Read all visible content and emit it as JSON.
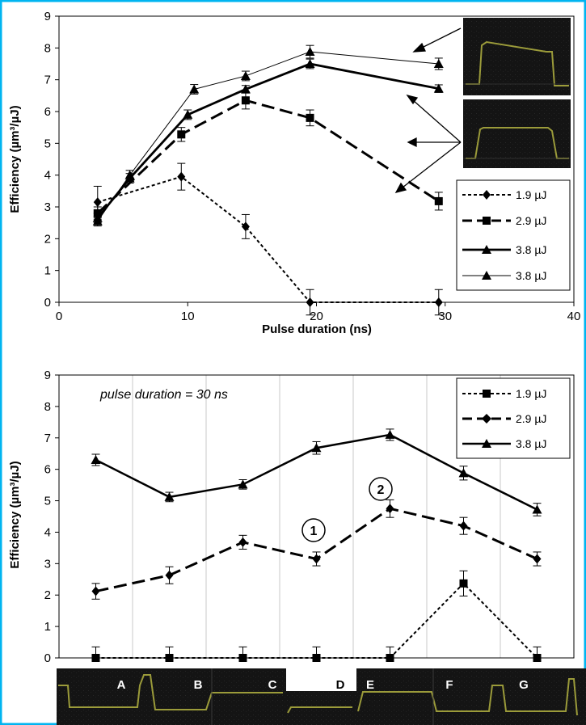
{
  "chart_data": [
    {
      "type": "line",
      "title": "",
      "xlabel": "Pulse duration (ns)",
      "ylabel": "Efficiency (µm³/µJ)",
      "xlim": [
        0,
        40
      ],
      "ylim": [
        0,
        9
      ],
      "xticks": [
        0,
        10,
        20,
        30,
        40
      ],
      "yticks": [
        0,
        1,
        2,
        3,
        4,
        5,
        6,
        7,
        8,
        9
      ],
      "grid": false,
      "legend_position": "bottom-right",
      "series": [
        {
          "name": "1.9 µJ",
          "marker": "diamond",
          "style": "dotted",
          "x": [
            3,
            9.5,
            14.5,
            19.5,
            29.5
          ],
          "y": [
            3.15,
            3.95,
            2.38,
            0,
            0
          ],
          "err": [
            0.5,
            0.42,
            0.38,
            0.4,
            0.4
          ]
        },
        {
          "name": "2.9 µJ",
          "marker": "square",
          "style": "dashed",
          "x": [
            3,
            9.5,
            14.5,
            19.5,
            29.5
          ],
          "y": [
            2.8,
            5.28,
            6.35,
            5.8,
            3.18
          ],
          "err": [
            0.2,
            0.22,
            0.27,
            0.25,
            0.28
          ]
        },
        {
          "name": "3.8 µJ",
          "marker": "triangle",
          "style": "thick",
          "x": [
            3,
            5.5,
            10,
            14.5,
            19.5,
            29.5
          ],
          "y": [
            2.65,
            3.9,
            5.9,
            6.7,
            7.5,
            6.72
          ],
          "err": [
            0.15,
            0.15,
            0.15,
            0.12,
            0.15,
            0.12
          ]
        },
        {
          "name": "3.8 µJ",
          "marker": "triangle",
          "style": "thin",
          "x": [
            3,
            5.5,
            10.5,
            14.5,
            19.5,
            29.5
          ],
          "y": [
            2.55,
            4.0,
            6.7,
            7.12,
            7.88,
            7.5
          ],
          "err": [
            0.15,
            0.15,
            0.15,
            0.15,
            0.2,
            0.18
          ]
        }
      ]
    },
    {
      "type": "line",
      "title": "",
      "xlabel": "",
      "ylabel": "Efficiency (µm³/µJ)",
      "ylim": [
        0,
        9
      ],
      "yticks": [
        0,
        1,
        2,
        3,
        4,
        5,
        6,
        7,
        8,
        9
      ],
      "categories": [
        "A",
        "B",
        "C",
        "D",
        "E",
        "F",
        "G"
      ],
      "grid": true,
      "legend_position": "top-right",
      "annotation": "pulse duration = 30 ns",
      "circled_labels": [
        "1",
        "2"
      ],
      "series": [
        {
          "name": "1.9 µJ",
          "marker": "square",
          "style": "dotted",
          "values": [
            0,
            0,
            0,
            0,
            0,
            2.37,
            0
          ],
          "err": [
            0.35,
            0.35,
            0.35,
            0.35,
            0.35,
            0.4,
            0.35
          ]
        },
        {
          "name": "2.9 µJ",
          "marker": "diamond",
          "style": "dashed",
          "values": [
            2.12,
            2.63,
            3.68,
            3.15,
            4.75,
            4.2,
            3.15
          ],
          "err": [
            0.25,
            0.27,
            0.22,
            0.22,
            0.28,
            0.27,
            0.22
          ]
        },
        {
          "name": "3.8 µJ",
          "marker": "triangle",
          "style": "solid",
          "values": [
            6.3,
            5.12,
            5.52,
            6.68,
            7.1,
            5.88,
            4.72
          ],
          "err": [
            0.18,
            0.15,
            0.15,
            0.2,
            0.18,
            0.22,
            0.2
          ]
        }
      ]
    }
  ]
}
